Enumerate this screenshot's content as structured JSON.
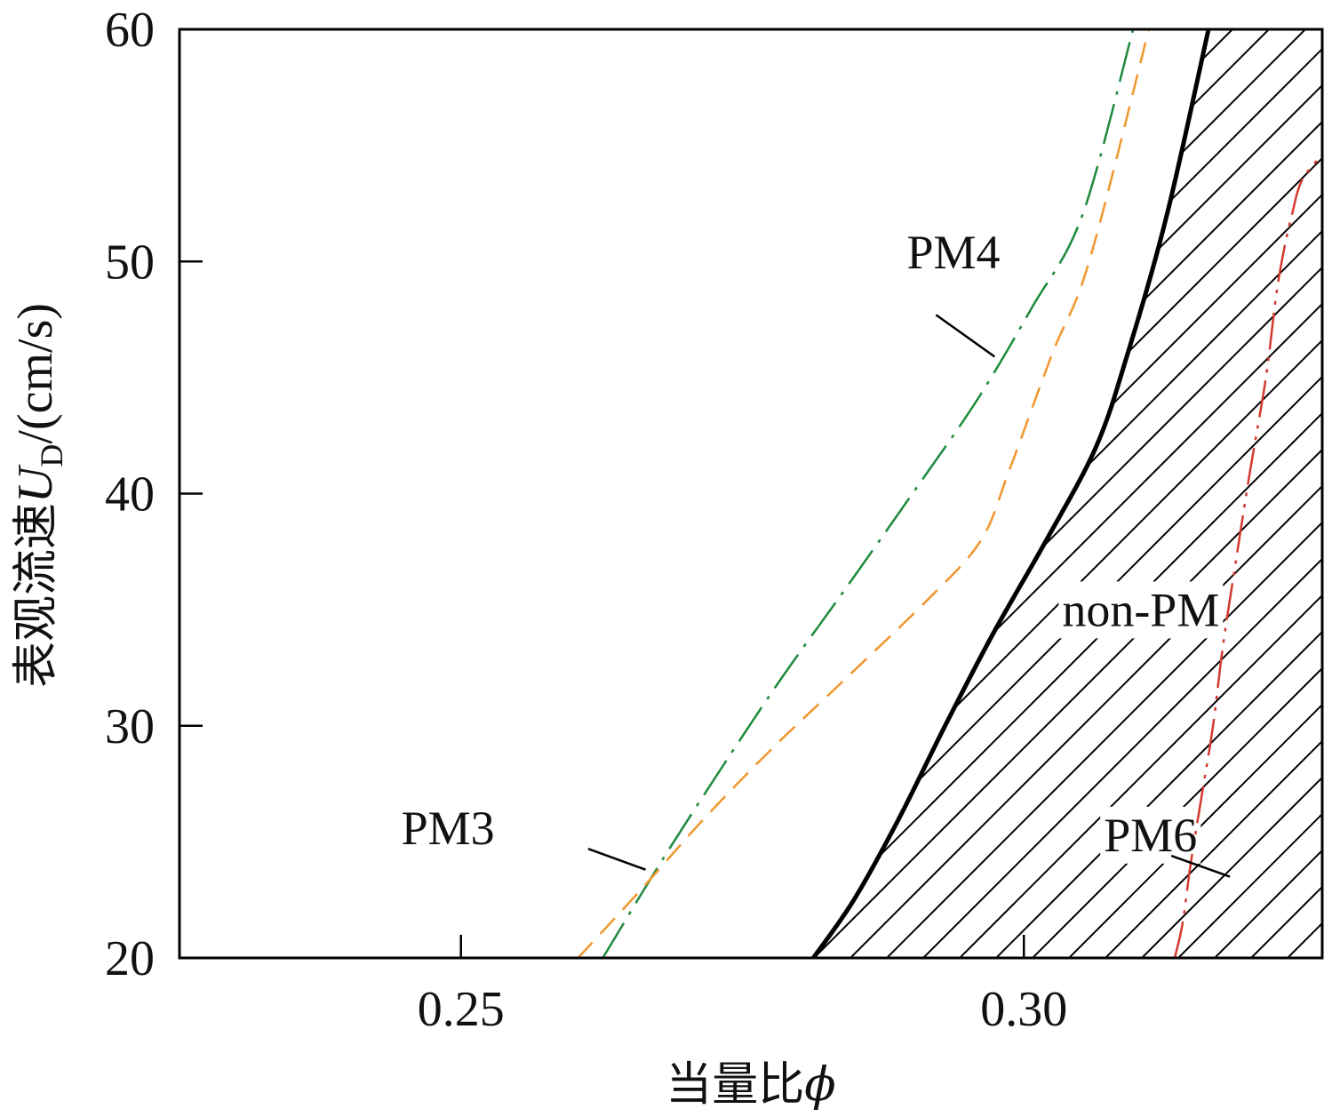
{
  "chart_data": {
    "type": "line",
    "title": "",
    "xlabel": "当量比",
    "xlabel_symbol": "ϕ",
    "ylabel_prefix": "表观流速",
    "ylabel_var": "U",
    "ylabel_sub": "D",
    "ylabel_unit": "/(cm/s)",
    "xlim": [
      0.225,
      0.3265
    ],
    "ylim": [
      20,
      60
    ],
    "xticks": [
      0.25,
      0.3
    ],
    "xtick_labels": [
      "0.25",
      "0.30"
    ],
    "yticks": [
      20,
      30,
      40,
      50,
      60
    ],
    "ytick_labels": [
      "20",
      "30",
      "40",
      "50",
      "60"
    ],
    "grid": false,
    "hatched_region": "non-PM",
    "series": [
      {
        "name": "PM4",
        "color": "#1e8a3c",
        "style": "dash-dot",
        "x": [
          0.2626,
          0.2676,
          0.2729,
          0.2784,
          0.2843,
          0.2901,
          0.2958,
          0.3007,
          0.3052,
          0.3097
        ],
        "y": [
          20,
          24,
          28,
          32,
          36,
          40,
          44,
          48,
          52,
          60
        ]
      },
      {
        "name": "PM3",
        "color": "#f0962c",
        "style": "dashed",
        "x": [
          0.2604,
          0.2661,
          0.2716,
          0.2776,
          0.2841,
          0.2916,
          0.2962,
          0.2987,
          0.3025,
          0.3058,
          0.3111
        ],
        "y": [
          20,
          23,
          26,
          29,
          32,
          35.5,
          38,
          41,
          46,
          50,
          60
        ]
      },
      {
        "name": "non-PM",
        "color": "#000000",
        "style": "solid",
        "x": [
          0.2813,
          0.2849,
          0.2889,
          0.293,
          0.2973,
          0.302,
          0.3064,
          0.3092,
          0.3127,
          0.3164
        ],
        "y": [
          20,
          22.5,
          26,
          30,
          34,
          38,
          42,
          46,
          52,
          60
        ]
      },
      {
        "name": "PM6",
        "color": "#d23a2e",
        "style": "dash-dot-dot",
        "x": [
          0.3134,
          0.3141,
          0.3148,
          0.3158,
          0.3168,
          0.3177,
          0.3188,
          0.3201,
          0.3215,
          0.3224,
          0.3231,
          0.3238,
          0.3247,
          0.3265
        ],
        "y": [
          20,
          21.5,
          24,
          27,
          30,
          33.5,
          37,
          41,
          45,
          48.5,
          50.5,
          52,
          53.5,
          54.6
        ]
      }
    ],
    "annotations": [
      {
        "text": "PM4",
        "x": 0.2896,
        "y": 49.7,
        "line_x": [
          0.2922,
          0.2974
        ],
        "line_y": [
          47.7,
          45.9
        ]
      },
      {
        "text": "PM3",
        "x": 0.2447,
        "y": 24.9,
        "line_x": [
          0.2613,
          0.2664
        ],
        "line_y": [
          24.7,
          23.8
        ]
      },
      {
        "text": "non-PM",
        "x": 0.3034,
        "y": 34.3
      },
      {
        "text": "PM6",
        "x": 0.3071,
        "y": 24.6,
        "line_x": [
          0.3131,
          0.3183
        ],
        "line_y": [
          24.4,
          23.5
        ]
      }
    ]
  }
}
